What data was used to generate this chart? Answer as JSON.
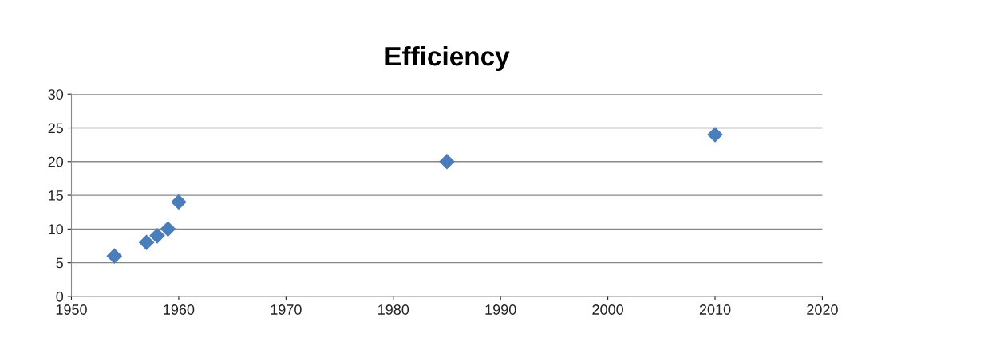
{
  "chart_data": {
    "type": "scatter",
    "title": "Efficiency",
    "series": [
      {
        "color": "#4a7ebb",
        "x": [
          1954,
          1957,
          1958,
          1959,
          1960,
          1985,
          2010
        ],
        "values": [
          6,
          8,
          9,
          10,
          14,
          20,
          24
        ]
      }
    ],
    "xlim": [
      1950,
      2020
    ],
    "xticks": [
      1950,
      1960,
      1970,
      1980,
      1990,
      2000,
      2010,
      2020
    ],
    "ylim": [
      0,
      30
    ],
    "yticks": [
      0,
      5,
      10,
      15,
      20,
      25,
      30
    ],
    "grid": "y",
    "marker": "diamond",
    "legend": false
  }
}
